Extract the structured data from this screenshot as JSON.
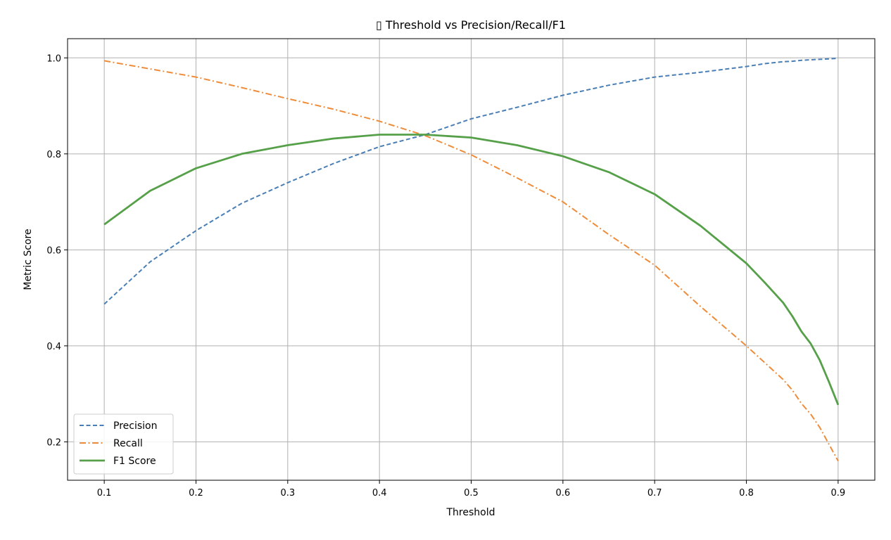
{
  "chart_data": {
    "type": "line",
    "title": "▯ Threshold vs Precision/Recall/F1",
    "xlabel": "Threshold",
    "ylabel": "Metric Score",
    "xlim": [
      0.06,
      0.94
    ],
    "ylim": [
      0.12,
      1.04
    ],
    "xticks": [
      0.1,
      0.2,
      0.3,
      0.4,
      0.5,
      0.6,
      0.7,
      0.8,
      0.9
    ],
    "yticks": [
      0.2,
      0.4,
      0.6,
      0.8,
      1.0
    ],
    "xtick_labels": [
      "0.1",
      "0.2",
      "0.3",
      "0.4",
      "0.5",
      "0.6",
      "0.7",
      "0.8",
      "0.9"
    ],
    "ytick_labels": [
      "0.2",
      "0.4",
      "0.6",
      "0.8",
      "1.0"
    ],
    "grid": true,
    "legend_position": "lower-left",
    "x": [
      0.1,
      0.15,
      0.2,
      0.25,
      0.3,
      0.35,
      0.4,
      0.45,
      0.5,
      0.55,
      0.6,
      0.65,
      0.7,
      0.75,
      0.8,
      0.82,
      0.84,
      0.85,
      0.86,
      0.87,
      0.88,
      0.89,
      0.9
    ],
    "series": [
      {
        "name": "Precision",
        "color": "#4a7fb5",
        "dash": "dashed",
        "values": [
          0.487,
          0.575,
          0.64,
          0.697,
          0.74,
          0.78,
          0.815,
          0.84,
          0.873,
          0.897,
          0.922,
          0.943,
          0.96,
          0.97,
          0.982,
          0.988,
          0.992,
          0.993,
          0.995,
          0.996,
          0.997,
          0.998,
          0.999
        ]
      },
      {
        "name": "Recall",
        "color": "#ef8c3a",
        "dash": "dashdot",
        "values": [
          0.994,
          0.977,
          0.96,
          0.938,
          0.915,
          0.893,
          0.868,
          0.838,
          0.798,
          0.75,
          0.7,
          0.632,
          0.568,
          0.482,
          0.4,
          0.365,
          0.33,
          0.308,
          0.28,
          0.258,
          0.23,
          0.195,
          0.16
        ]
      },
      {
        "name": "F1 Score",
        "color": "#56a04a",
        "dash": "solid",
        "values": [
          0.653,
          0.723,
          0.77,
          0.8,
          0.818,
          0.832,
          0.84,
          0.84,
          0.834,
          0.818,
          0.795,
          0.762,
          0.716,
          0.65,
          0.572,
          0.532,
          0.49,
          0.462,
          0.43,
          0.405,
          0.37,
          0.325,
          0.277
        ]
      }
    ]
  }
}
